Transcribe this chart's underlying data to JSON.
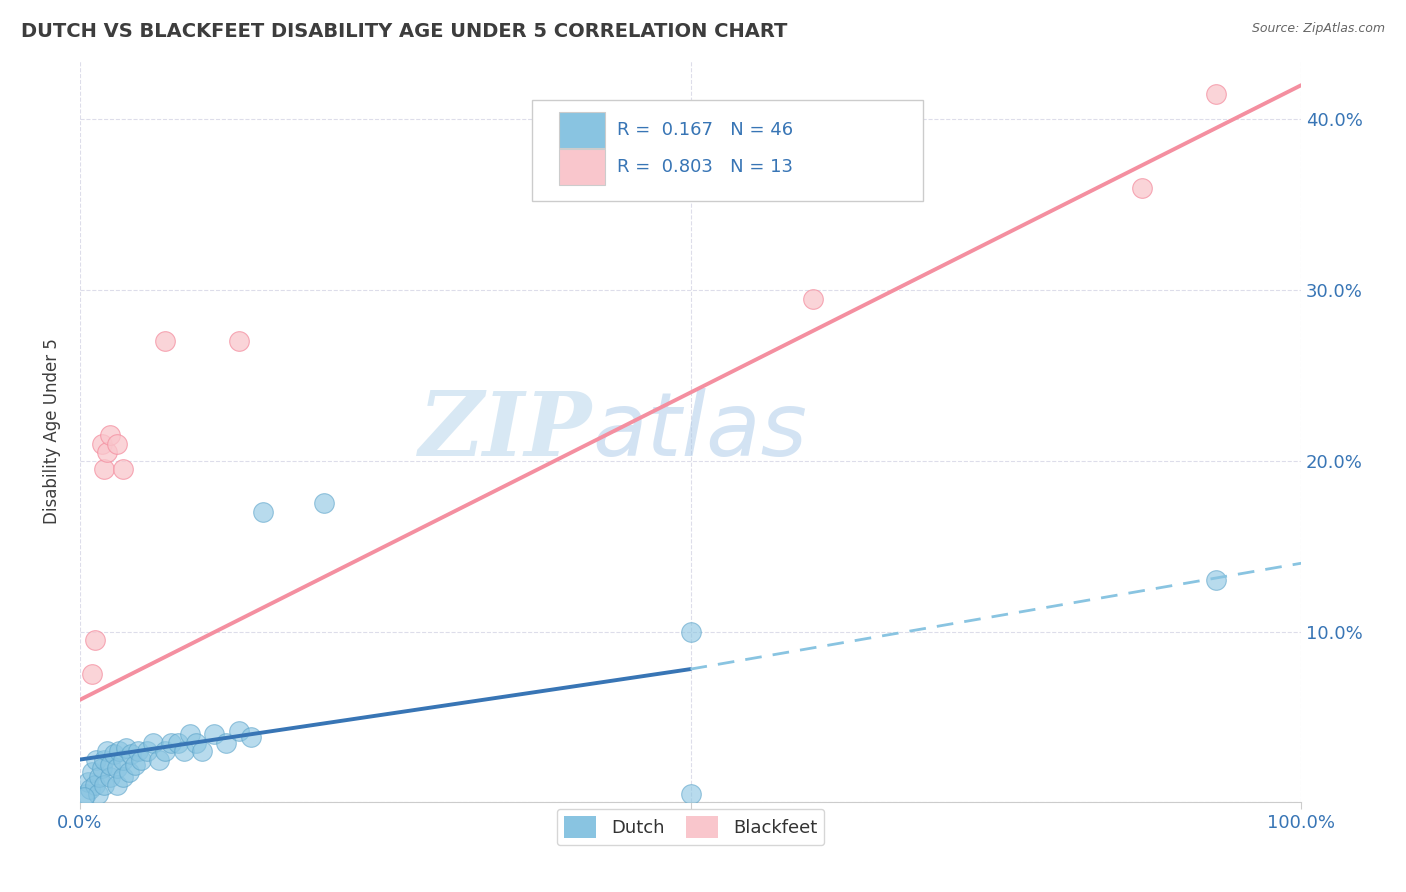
{
  "title": "DUTCH VS BLACKFEET DISABILITY AGE UNDER 5 CORRELATION CHART",
  "source": "Source: ZipAtlas.com",
  "ylabel": "Disability Age Under 5",
  "xlim": [
    0,
    1.0
  ],
  "ylim": [
    0,
    0.435
  ],
  "xticks": [
    0.0,
    0.5,
    1.0
  ],
  "xtick_labels": [
    "0.0%",
    "",
    "100.0%"
  ],
  "yticks": [
    0.0,
    0.1,
    0.2,
    0.3,
    0.4
  ],
  "ytick_labels_right": [
    "",
    "10.0%",
    "20.0%",
    "30.0%",
    "40.0%"
  ],
  "dutch_color": "#89c4e1",
  "dutch_edge_color": "#5ba3c9",
  "blackfeet_color": "#f9c6cc",
  "blackfeet_edge_color": "#f48fa0",
  "dutch_scatter": [
    [
      0.005,
      0.005
    ],
    [
      0.007,
      0.012
    ],
    [
      0.008,
      0.008
    ],
    [
      0.01,
      0.018
    ],
    [
      0.012,
      0.01
    ],
    [
      0.013,
      0.025
    ],
    [
      0.015,
      0.005
    ],
    [
      0.016,
      0.015
    ],
    [
      0.018,
      0.02
    ],
    [
      0.02,
      0.01
    ],
    [
      0.02,
      0.025
    ],
    [
      0.022,
      0.03
    ],
    [
      0.025,
      0.015
    ],
    [
      0.025,
      0.022
    ],
    [
      0.028,
      0.028
    ],
    [
      0.03,
      0.01
    ],
    [
      0.03,
      0.02
    ],
    [
      0.032,
      0.03
    ],
    [
      0.035,
      0.015
    ],
    [
      0.035,
      0.025
    ],
    [
      0.038,
      0.032
    ],
    [
      0.04,
      0.018
    ],
    [
      0.042,
      0.028
    ],
    [
      0.045,
      0.022
    ],
    [
      0.048,
      0.03
    ],
    [
      0.05,
      0.025
    ],
    [
      0.055,
      0.03
    ],
    [
      0.06,
      0.035
    ],
    [
      0.065,
      0.025
    ],
    [
      0.07,
      0.03
    ],
    [
      0.075,
      0.035
    ],
    [
      0.08,
      0.035
    ],
    [
      0.085,
      0.03
    ],
    [
      0.09,
      0.04
    ],
    [
      0.095,
      0.035
    ],
    [
      0.1,
      0.03
    ],
    [
      0.11,
      0.04
    ],
    [
      0.12,
      0.035
    ],
    [
      0.13,
      0.042
    ],
    [
      0.14,
      0.038
    ],
    [
      0.15,
      0.17
    ],
    [
      0.2,
      0.175
    ],
    [
      0.5,
      0.1
    ],
    [
      0.5,
      0.005
    ],
    [
      0.93,
      0.13
    ],
    [
      0.003,
      0.003
    ]
  ],
  "blackfeet_scatter": [
    [
      0.01,
      0.075
    ],
    [
      0.012,
      0.095
    ],
    [
      0.018,
      0.21
    ],
    [
      0.02,
      0.195
    ],
    [
      0.022,
      0.205
    ],
    [
      0.025,
      0.215
    ],
    [
      0.03,
      0.21
    ],
    [
      0.035,
      0.195
    ],
    [
      0.07,
      0.27
    ],
    [
      0.13,
      0.27
    ],
    [
      0.6,
      0.295
    ],
    [
      0.87,
      0.36
    ],
    [
      0.93,
      0.415
    ]
  ],
  "dutch_line_solid": [
    [
      0.0,
      0.025
    ],
    [
      0.5,
      0.078
    ]
  ],
  "dutch_line_dashed": [
    [
      0.5,
      0.078
    ],
    [
      1.0,
      0.14
    ]
  ],
  "blackfeet_line": [
    [
      0.0,
      0.06
    ],
    [
      1.0,
      0.42
    ]
  ],
  "watermark_zip": "ZIP",
  "watermark_atlas": "atlas",
  "R_dutch": "0.167",
  "N_dutch": "46",
  "R_blackfeet": "0.803",
  "N_blackfeet": "13",
  "blue_text_color": "#3875b5",
  "title_color": "#3d3d3d",
  "axis_label_color": "#3d3d3d",
  "tick_color": "#3875b5",
  "grid_color": "#d5d5e5",
  "line_blue": "#3875b5",
  "line_blue_dashed": "#89c4e1",
  "line_pink": "#f48fa0"
}
